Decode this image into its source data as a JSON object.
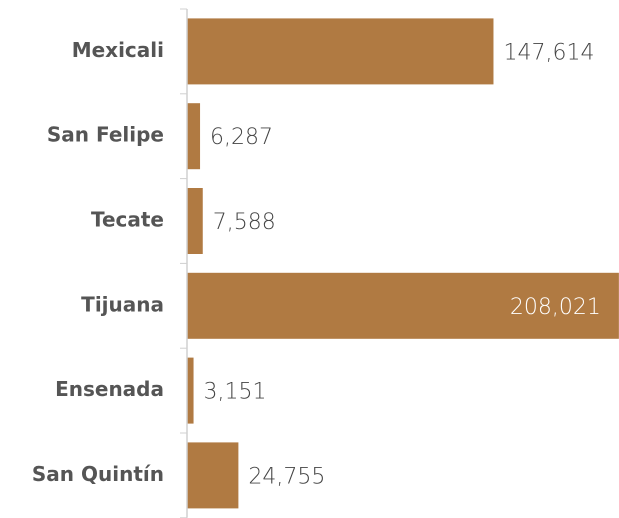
{
  "chart_data": {
    "type": "barh",
    "categories": [
      "Mexicali",
      "San Felipe",
      "Tecate",
      "Tijuana",
      "Ensenada",
      "San Quintín"
    ],
    "values": [
      147614,
      6287,
      7588,
      208021,
      3151,
      24755
    ],
    "value_labels": [
      "147,614",
      "6,287",
      "7,588",
      "208,021",
      "3,151",
      "24,755"
    ],
    "color": "#b07a42",
    "xlim": [
      0,
      210000
    ]
  }
}
